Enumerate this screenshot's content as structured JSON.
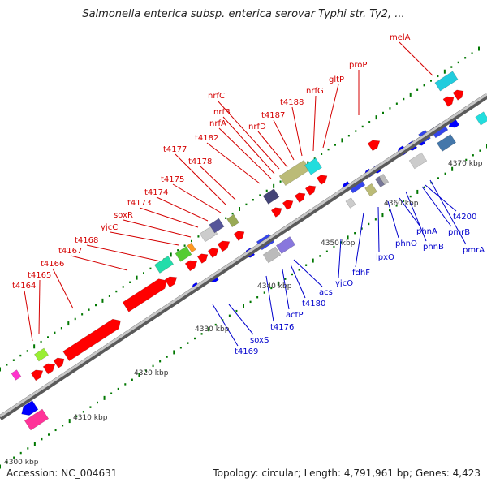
{
  "title": "Salmonella enterica subsp. enterica serovar Typhi str. Ty2, ...",
  "footer": {
    "accession": "Accession: NC_004631",
    "summary": "Topology: circular; Length: 4,791,961 bp; Genes: 4,423"
  },
  "colors": {
    "forward_label": "#d40000",
    "reverse_label": "#0000cc",
    "forward_gene": "#ff0000",
    "reverse_gene": "#0000ff",
    "backbone": "#888888",
    "tick": "#007700"
  },
  "kbp_labels": [
    "4300 kbp",
    "4310 kbp",
    "4320 kbp",
    "4330 kbp",
    "4340 kbp",
    "4350 kbp",
    "4360 kbp",
    "4370 kbp"
  ],
  "forward_genes": [
    "t4164",
    "t4165",
    "t4166",
    "t4167",
    "t4168",
    "yjcC",
    "soxR",
    "t4173",
    "t4174",
    "t4175",
    "t4177",
    "t4178",
    "t4182",
    "nrfA",
    "nrfB",
    "nrfC",
    "nrfD",
    "t4187",
    "t4188",
    "nrfG",
    "gltP",
    "proP",
    "melA"
  ],
  "reverse_genes": [
    "t4169",
    "soxS",
    "t4176",
    "actP",
    "t4180",
    "acs",
    "yjcO",
    "fdhF",
    "lpxO",
    "phnO",
    "phnA",
    "phnB",
    "pmrB",
    "t4200",
    "pmrA"
  ]
}
